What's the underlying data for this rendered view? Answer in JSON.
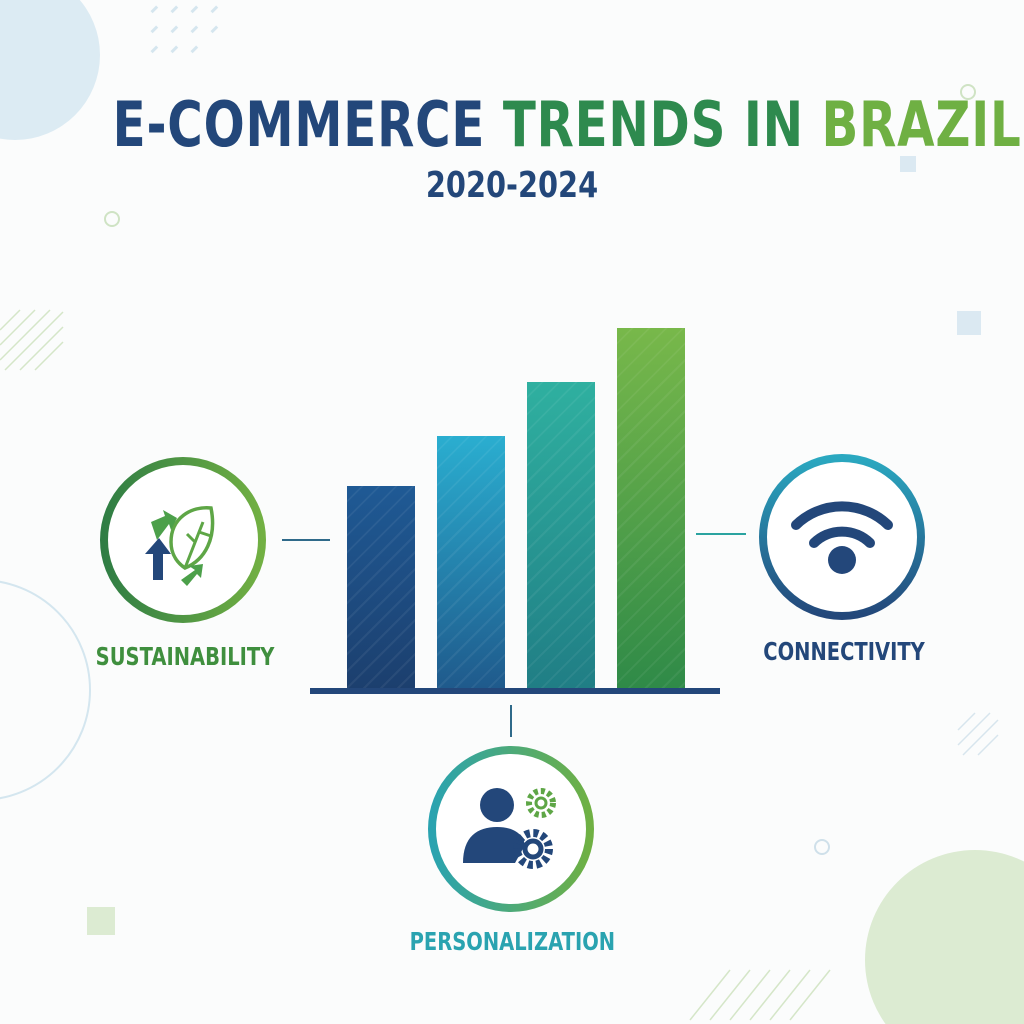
{
  "header": {
    "title_part1": "E-COMMERCE",
    "title_part2": "TRENDS IN",
    "title_part3": "BRAZIL",
    "subtitle": "2020-2024"
  },
  "bars": {
    "relative_heights": [
      0.56,
      0.7,
      0.85,
      1.0
    ],
    "colors": [
      [
        "#1f5a95",
        "#1c3f6e"
      ],
      [
        "#2aaed0",
        "#1f5a8c"
      ],
      [
        "#2fb0a0",
        "#207e85"
      ],
      [
        "#78b84a",
        "#2f8a48"
      ]
    ]
  },
  "trends": [
    {
      "label": "SUSTAINABILITY",
      "icon": "recycle-leaf-icon",
      "color": "#3f8f3e"
    },
    {
      "label": "CONNECTIVITY",
      "icon": "wifi-icon",
      "color": "#23477a"
    },
    {
      "label": "PERSONALIZATION",
      "icon": "user-gears-icon",
      "color": "#2aa3b0"
    }
  ],
  "colors": {
    "navy": "#23477a",
    "green": "#2e8a4e",
    "light_green": "#6fb043",
    "teal": "#2aa3b0"
  }
}
